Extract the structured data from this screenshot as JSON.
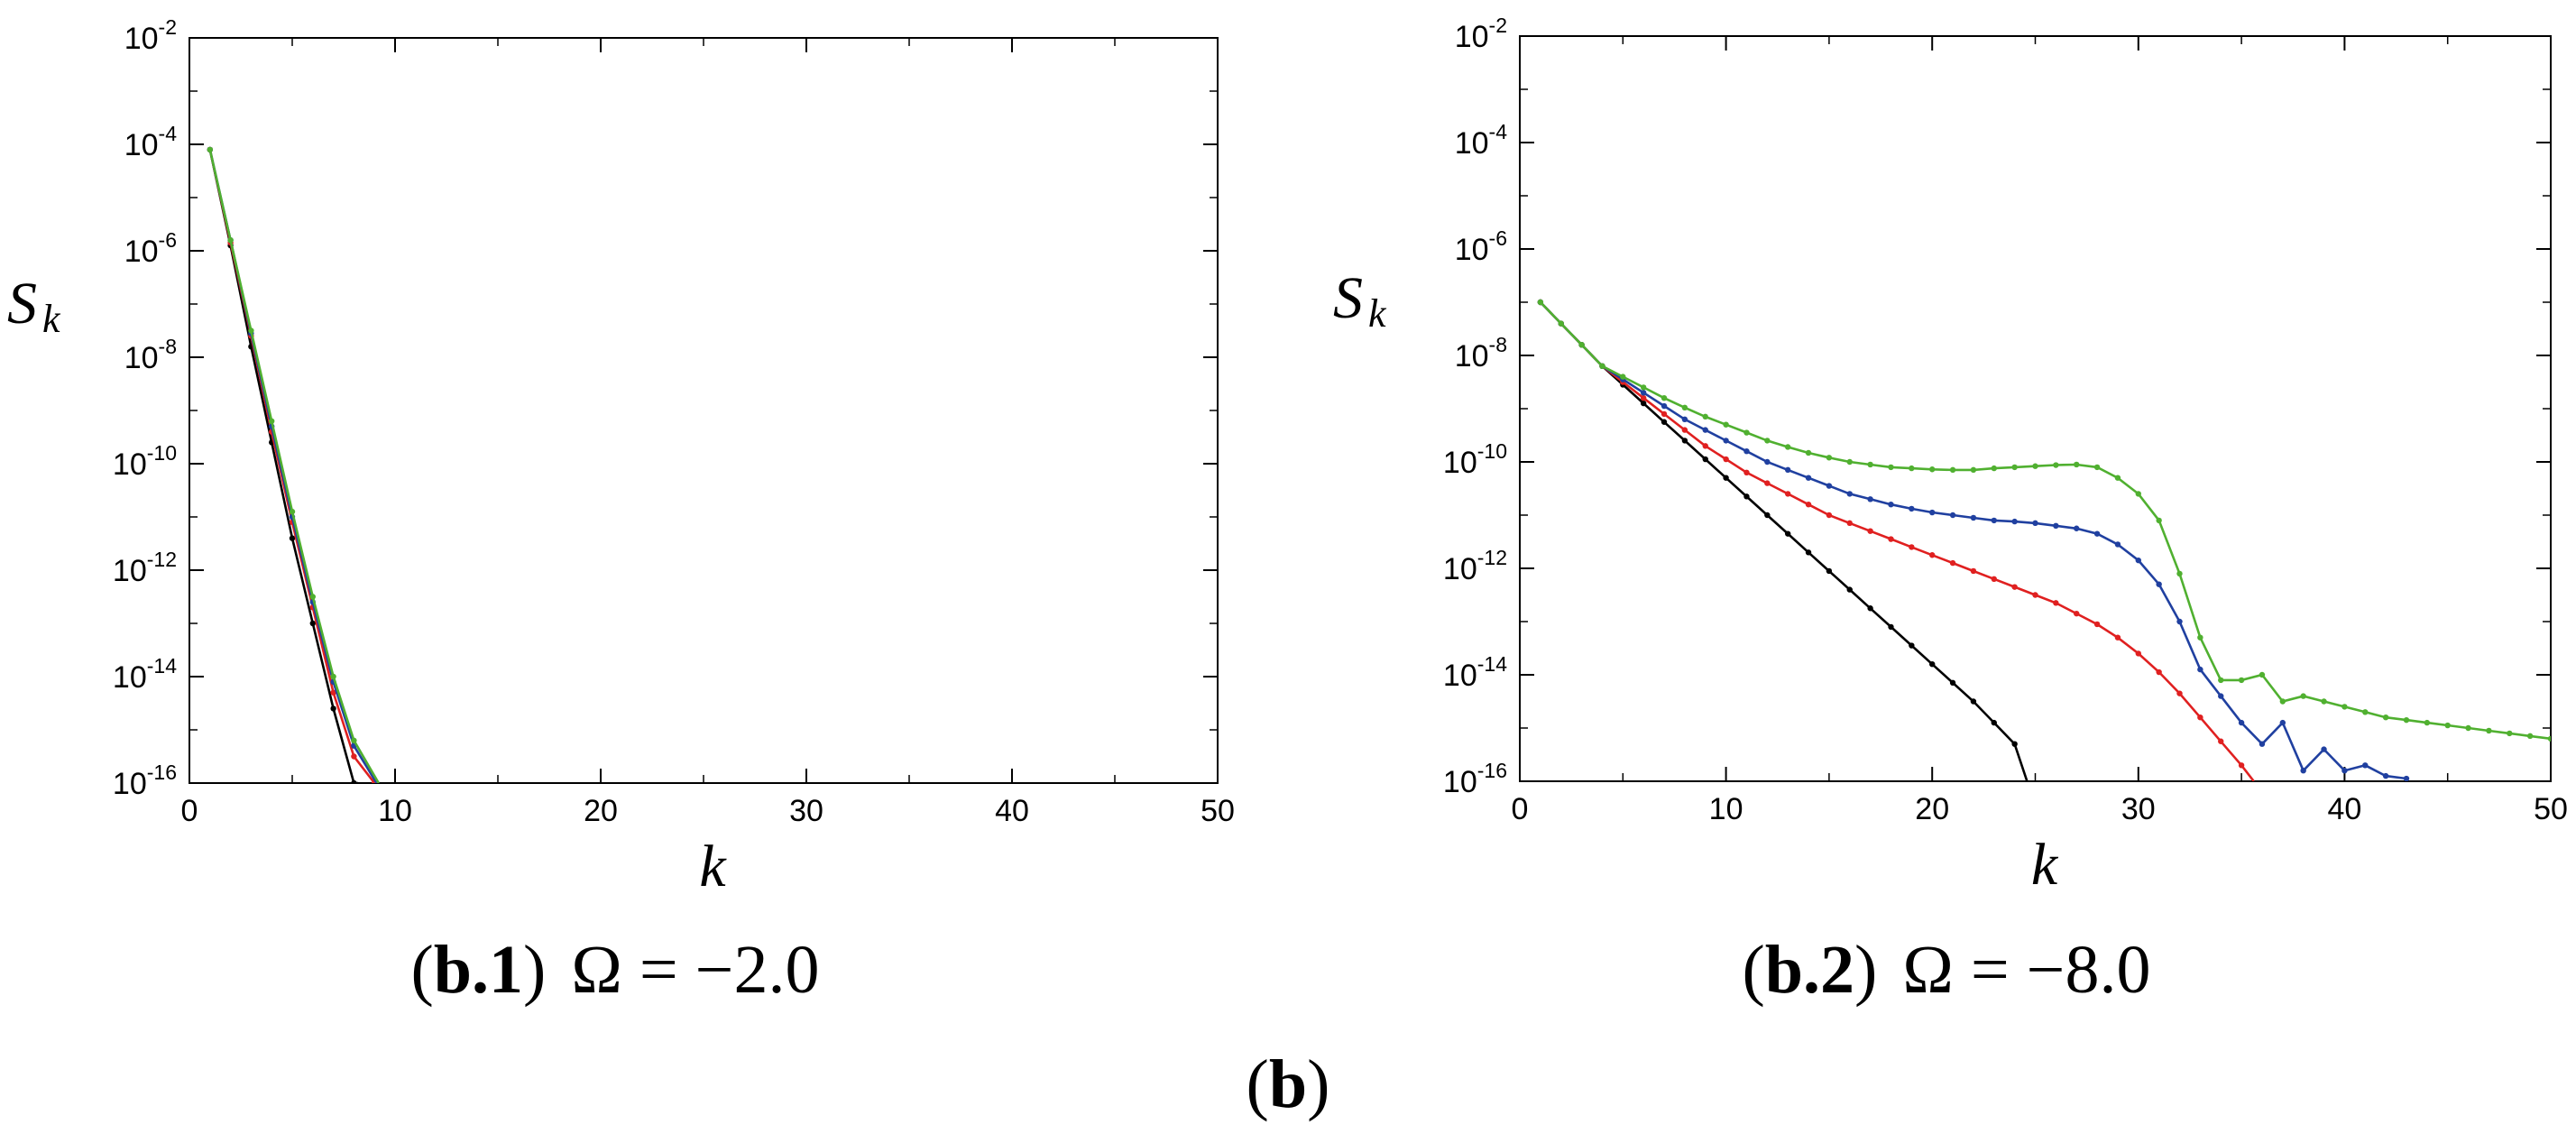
{
  "figure_caption": {
    "open": "(",
    "label": "b",
    "close": ")"
  },
  "chart_data": [
    {
      "type": "line",
      "id": "b1",
      "caption_label": "b.1",
      "caption_rest": "Ω = −2.0",
      "xlabel": "k",
      "ylabel": "S",
      "ylabel_sub": "k",
      "xlim": [
        0,
        50
      ],
      "xticks": [
        0,
        10,
        20,
        30,
        40,
        50
      ],
      "ylog": true,
      "ylim_exp": [
        -16,
        -2
      ],
      "yticks_exp": [
        -2,
        -4,
        -6,
        -8,
        -10,
        -12,
        -14,
        -16
      ],
      "grid": false,
      "series": [
        {
          "color": "#000000",
          "x": [
            1,
            2,
            3,
            4,
            5,
            6,
            7,
            8,
            8.2
          ],
          "y_exp": [
            -4.1,
            -5.9,
            -7.8,
            -9.6,
            -11.4,
            -13.0,
            -14.6,
            -16.0,
            -16.0
          ]
        },
        {
          "color": "#e02020",
          "x": [
            1,
            2,
            3,
            4,
            5,
            6,
            7,
            8,
            9
          ],
          "y_exp": [
            -4.1,
            -5.85,
            -7.6,
            -9.4,
            -11.1,
            -12.7,
            -14.3,
            -15.5,
            -16.0
          ]
        },
        {
          "color": "#2040a0",
          "x": [
            1,
            2,
            3,
            4,
            5,
            6,
            7,
            8,
            9.1
          ],
          "y_exp": [
            -4.1,
            -5.8,
            -7.55,
            -9.3,
            -11.0,
            -12.6,
            -14.1,
            -15.3,
            -16.0
          ]
        },
        {
          "color": "#50b030",
          "x": [
            1,
            2,
            3,
            4,
            5,
            6,
            7,
            8,
            9.2
          ],
          "y_exp": [
            -4.1,
            -5.8,
            -7.5,
            -9.2,
            -10.9,
            -12.5,
            -14.0,
            -15.2,
            -16.0
          ]
        }
      ]
    },
    {
      "type": "line",
      "id": "b2",
      "caption_label": "b.2",
      "caption_rest": "Ω = −8.0",
      "xlabel": "k",
      "ylabel": "S",
      "ylabel_sub": "k",
      "xlim": [
        0,
        50
      ],
      "xticks": [
        0,
        10,
        20,
        30,
        40,
        50
      ],
      "ylog": true,
      "ylim_exp": [
        -16,
        -2
      ],
      "yticks_exp": [
        -2,
        -4,
        -6,
        -8,
        -10,
        -12,
        -14,
        -16
      ],
      "grid": false,
      "series": [
        {
          "color": "#000000",
          "x": [
            1,
            2,
            3,
            4,
            5,
            6,
            7,
            8,
            9,
            10,
            11,
            12,
            13,
            14,
            15,
            16,
            17,
            18,
            19,
            20,
            21,
            22,
            23,
            24,
            24.6
          ],
          "y_exp": [
            -7.0,
            -7.4,
            -7.8,
            -8.2,
            -8.55,
            -8.9,
            -9.25,
            -9.6,
            -9.95,
            -10.3,
            -10.65,
            -11.0,
            -11.35,
            -11.7,
            -12.05,
            -12.4,
            -12.75,
            -13.1,
            -13.45,
            -13.8,
            -14.15,
            -14.5,
            -14.9,
            -15.3,
            -16.0
          ]
        },
        {
          "color": "#e02020",
          "x": [
            1,
            2,
            3,
            4,
            5,
            6,
            7,
            8,
            9,
            10,
            11,
            12,
            13,
            14,
            15,
            16,
            17,
            18,
            19,
            20,
            21,
            22,
            23,
            24,
            25,
            26,
            27,
            28,
            29,
            30,
            31,
            32,
            33,
            34,
            35,
            35.6
          ],
          "y_exp": [
            -7.0,
            -7.4,
            -7.8,
            -8.2,
            -8.5,
            -8.8,
            -9.1,
            -9.4,
            -9.7,
            -9.95,
            -10.2,
            -10.4,
            -10.6,
            -10.8,
            -11.0,
            -11.15,
            -11.3,
            -11.45,
            -11.6,
            -11.75,
            -11.9,
            -12.05,
            -12.2,
            -12.35,
            -12.5,
            -12.65,
            -12.85,
            -13.05,
            -13.3,
            -13.6,
            -13.95,
            -14.35,
            -14.8,
            -15.25,
            -15.7,
            -16.0
          ]
        },
        {
          "color": "#2040a0",
          "x": [
            1,
            2,
            3,
            4,
            5,
            6,
            7,
            8,
            9,
            10,
            11,
            12,
            13,
            14,
            15,
            16,
            17,
            18,
            19,
            20,
            21,
            22,
            23,
            24,
            25,
            26,
            27,
            28,
            29,
            30,
            31,
            32,
            33,
            34,
            35,
            36,
            37,
            38,
            39,
            40,
            41,
            42,
            43
          ],
          "y_exp": [
            -7.0,
            -7.4,
            -7.8,
            -8.2,
            -8.45,
            -8.7,
            -8.95,
            -9.2,
            -9.4,
            -9.6,
            -9.8,
            -10.0,
            -10.15,
            -10.3,
            -10.45,
            -10.6,
            -10.7,
            -10.8,
            -10.88,
            -10.95,
            -11.0,
            -11.05,
            -11.1,
            -11.12,
            -11.15,
            -11.2,
            -11.25,
            -11.35,
            -11.55,
            -11.85,
            -12.3,
            -13.0,
            -13.9,
            -14.4,
            -14.9,
            -15.3,
            -14.9,
            -15.8,
            -15.4,
            -15.8,
            -15.7,
            -15.9,
            -15.95
          ]
        },
        {
          "color": "#50b030",
          "x": [
            1,
            2,
            3,
            4,
            5,
            6,
            7,
            8,
            9,
            10,
            11,
            12,
            13,
            14,
            15,
            16,
            17,
            18,
            19,
            20,
            21,
            22,
            23,
            24,
            25,
            26,
            27,
            28,
            29,
            30,
            31,
            32,
            33,
            34,
            35,
            36,
            37,
            38,
            39,
            40,
            41,
            42,
            43,
            44,
            45,
            46,
            47,
            48,
            49,
            50
          ],
          "y_exp": [
            -7.0,
            -7.4,
            -7.8,
            -8.2,
            -8.4,
            -8.6,
            -8.8,
            -8.98,
            -9.15,
            -9.3,
            -9.45,
            -9.6,
            -9.72,
            -9.83,
            -9.92,
            -10.0,
            -10.05,
            -10.1,
            -10.12,
            -10.14,
            -10.15,
            -10.15,
            -10.12,
            -10.1,
            -10.08,
            -10.06,
            -10.05,
            -10.1,
            -10.3,
            -10.6,
            -11.1,
            -12.1,
            -13.3,
            -14.1,
            -14.1,
            -14.0,
            -14.5,
            -14.4,
            -14.5,
            -14.6,
            -14.7,
            -14.8,
            -14.85,
            -14.9,
            -14.95,
            -15.0,
            -15.05,
            -15.1,
            -15.15,
            -15.2
          ]
        }
      ]
    }
  ]
}
